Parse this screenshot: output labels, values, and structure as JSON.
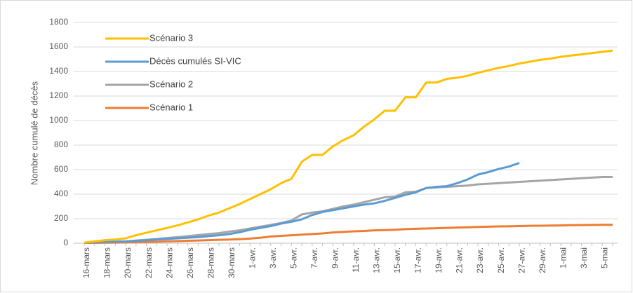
{
  "chart_data": {
    "type": "line",
    "y_label": "Nombre cumulé de décès",
    "categories": [
      "16-mars",
      null,
      "18-mars",
      null,
      "20-mars",
      null,
      "22-mars",
      null,
      "24-mars",
      null,
      "26-mars",
      null,
      "28-mars",
      null,
      "30-mars",
      null,
      "1-avr.",
      null,
      "3-avr.",
      null,
      "5-avr.",
      null,
      "7-avr.",
      null,
      "9-avr.",
      null,
      "11-avr.",
      null,
      "13-avr.",
      null,
      "15-avr.",
      null,
      "17-avr.",
      null,
      "19-avr.",
      null,
      "21-avr.",
      null,
      "23-avr.",
      null,
      "25-avr.",
      null,
      "27-avr.",
      null,
      "29-avr.",
      null,
      "1-mai",
      null,
      "3-mai",
      null,
      "5-mai",
      null
    ],
    "series": [
      {
        "name": "Scénario 3",
        "color": "#ffc000",
        "values": [
          5,
          15,
          25,
          30,
          40,
          65,
          85,
          105,
          125,
          145,
          170,
          195,
          225,
          250,
          285,
          320,
          360,
          400,
          440,
          490,
          525,
          665,
          720,
          720,
          790,
          840,
          880,
          950,
          1010,
          1080,
          1080,
          1190,
          1190,
          1310,
          1310,
          1340,
          1350,
          1365,
          1390,
          1410,
          1430,
          1445,
          1465,
          1480,
          1495,
          1505,
          1520,
          1530,
          1540,
          1550,
          1560,
          1570
        ]
      },
      {
        "name": "Décès cumulés SI-VIC",
        "color": "#5b9bd5",
        "values": [
          5,
          7,
          10,
          12,
          15,
          20,
          25,
          30,
          35,
          40,
          45,
          50,
          58,
          65,
          75,
          90,
          110,
          125,
          140,
          160,
          175,
          195,
          230,
          255,
          270,
          285,
          300,
          315,
          325,
          345,
          370,
          395,
          415,
          450,
          460,
          465,
          490,
          520,
          560,
          580,
          605,
          625,
          655,
          null,
          null,
          null,
          null,
          null,
          null,
          null,
          null,
          null
        ]
      },
      {
        "name": "Scénario 2",
        "color": "#a5a5a5",
        "values": [
          5,
          8,
          10,
          12,
          15,
          22,
          28,
          35,
          42,
          50,
          58,
          66,
          75,
          82,
          95,
          105,
          120,
          135,
          150,
          165,
          185,
          235,
          250,
          260,
          280,
          300,
          315,
          335,
          355,
          375,
          380,
          415,
          420,
          450,
          455,
          460,
          465,
          470,
          480,
          485,
          490,
          495,
          500,
          505,
          510,
          515,
          520,
          525,
          530,
          535,
          540,
          540
        ]
      },
      {
        "name": "Scénario 1",
        "color": "#ed7d31",
        "values": [
          2,
          3,
          4,
          5,
          6,
          8,
          10,
          12,
          15,
          17,
          20,
          22,
          25,
          28,
          30,
          33,
          38,
          45,
          55,
          60,
          65,
          70,
          75,
          80,
          88,
          92,
          97,
          100,
          105,
          107,
          110,
          115,
          118,
          120,
          122,
          125,
          128,
          130,
          133,
          135,
          137,
          138,
          140,
          142,
          143,
          144,
          145,
          147,
          148,
          149,
          150,
          150
        ]
      }
    ],
    "ylim": [
      0,
      1800
    ],
    "yticks": [
      0,
      200,
      400,
      600,
      800,
      1000,
      1200,
      1400,
      1600,
      1800
    ],
    "grid": true
  }
}
